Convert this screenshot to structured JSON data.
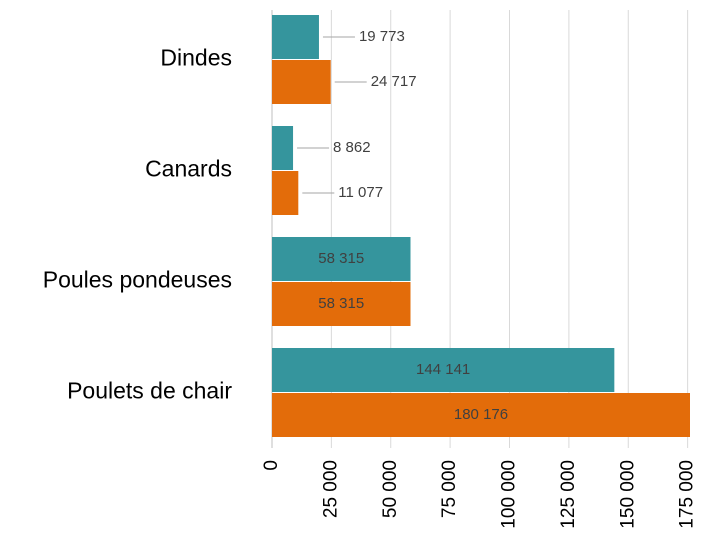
{
  "chart_data": {
    "type": "hbar",
    "categories": [
      "Dindes",
      "Canards",
      "Poules pondeuses",
      "Poulets de chair"
    ],
    "series": [
      {
        "color": "#35959d",
        "values": [
          19773,
          8862,
          58315,
          144141
        ],
        "value_labels": [
          "19 773",
          "8 862",
          "58 315",
          "144 141"
        ]
      },
      {
        "color": "#e36c0a",
        "values": [
          24717,
          11077,
          58315,
          180176
        ],
        "value_labels": [
          "24 717",
          "11 077",
          "58 315",
          "180 176"
        ]
      }
    ],
    "xlim": [
      0,
      176000
    ],
    "xticks": [
      0,
      {
        "value": 25000,
        "label": "25 000"
      },
      {
        "value": 50000,
        "label": "50 000"
      },
      {
        "value": 75000,
        "label": "75 000"
      },
      {
        "value": 100000,
        "label": "100 000"
      },
      {
        "value": 125000,
        "label": "125 000"
      },
      {
        "value": 150000,
        "label": "150 000"
      },
      {
        "value": 175000,
        "label": "175 000"
      }
    ],
    "grid": true
  }
}
